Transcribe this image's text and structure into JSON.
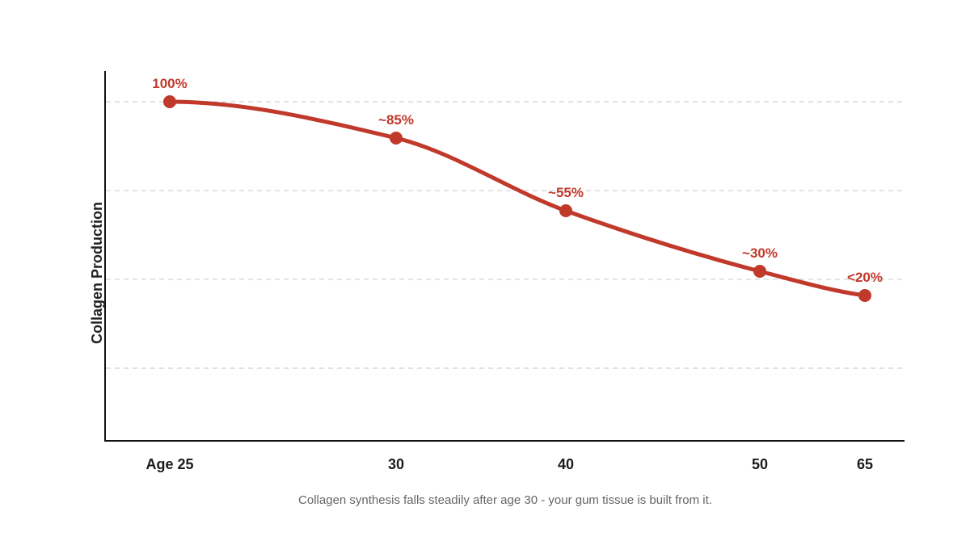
{
  "chart_data": {
    "type": "line",
    "title": "",
    "xlabel": "",
    "ylabel": "Collagen Production",
    "x": [
      25,
      30,
      40,
      50,
      65
    ],
    "x_tick_labels": [
      "Age 25",
      "30",
      "40",
      "50",
      "65"
    ],
    "series": [
      {
        "values": [
          100,
          85,
          55,
          30,
          20
        ],
        "data_labels": [
          "100%",
          "~85%",
          "~55%",
          "~30%",
          "<20%"
        ],
        "color": "#c0392b"
      }
    ],
    "ylim": [
      0,
      110
    ],
    "grid": true,
    "grid_style": "dashed horizontal",
    "y_ticks_labeled": false,
    "x_axis_spacing": "categorical-uneven",
    "caption": "Collagen synthesis falls steadily after age 30 - your gum tissue is built from it."
  },
  "colors": {
    "line": "#c0392b",
    "axis": "#111111",
    "grid": "#d9d9d9",
    "caption": "#666666"
  }
}
